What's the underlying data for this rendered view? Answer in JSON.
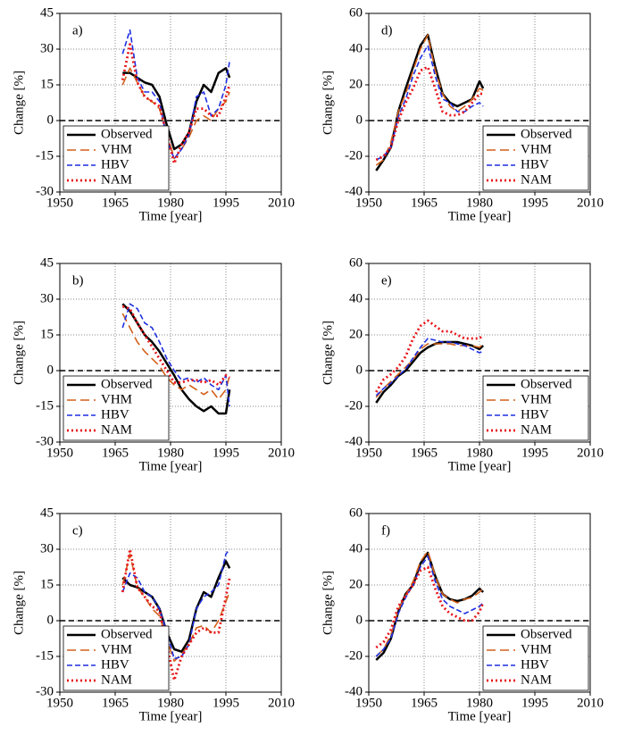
{
  "chart_data": [
    {
      "type": "line",
      "label": "a)",
      "xlabel": "Time [year]",
      "ylabel": "Change [%]",
      "xlim": [
        1950,
        2010
      ],
      "xticks": [
        1950,
        1965,
        1980,
        1995,
        2010
      ],
      "ylim": [
        -30,
        45
      ],
      "yticks": [
        -30,
        -15,
        0,
        15,
        30,
        45
      ],
      "grid": true,
      "reference_line": 0,
      "legend": "lower left",
      "x": [
        1967,
        1969,
        1971,
        1973,
        1975,
        1977,
        1979,
        1981,
        1983,
        1985,
        1987,
        1989,
        1991,
        1993,
        1995,
        1996
      ],
      "series": [
        {
          "name": "Observed",
          "color": "#000000",
          "style": "solid",
          "values": [
            20,
            20,
            18,
            16,
            15,
            10,
            -2,
            -12,
            -10,
            -5,
            8,
            15,
            12,
            20,
            22,
            18
          ]
        },
        {
          "name": "VHM",
          "color": "#d2601a",
          "style": "longdash",
          "values": [
            15,
            22,
            16,
            10,
            8,
            5,
            -5,
            -16,
            -12,
            -7,
            0,
            2,
            0,
            5,
            8,
            12
          ]
        },
        {
          "name": "HBV",
          "color": "#1f2fe0",
          "style": "dashed",
          "values": [
            28,
            38,
            18,
            12,
            12,
            8,
            -8,
            -16,
            -12,
            -6,
            10,
            12,
            2,
            5,
            15,
            25
          ]
        },
        {
          "name": "NAM",
          "color": "#e8161b",
          "style": "dotted",
          "values": [
            17,
            32,
            16,
            10,
            8,
            6,
            -6,
            -18,
            -10,
            -5,
            5,
            5,
            2,
            2,
            10,
            15
          ]
        }
      ]
    },
    {
      "type": "line",
      "label": "b)",
      "xlabel": "Time [year]",
      "ylabel": "Change [%]",
      "xlim": [
        1950,
        2010
      ],
      "xticks": [
        1950,
        1965,
        1980,
        1995,
        2010
      ],
      "ylim": [
        -30,
        45
      ],
      "yticks": [
        -30,
        -15,
        0,
        15,
        30,
        45
      ],
      "grid": true,
      "reference_line": 0,
      "legend": "lower left",
      "x": [
        1967,
        1969,
        1971,
        1973,
        1975,
        1977,
        1979,
        1981,
        1983,
        1985,
        1987,
        1989,
        1991,
        1993,
        1995,
        1996
      ],
      "series": [
        {
          "name": "Observed",
          "color": "#000000",
          "style": "solid",
          "values": [
            28,
            25,
            20,
            15,
            12,
            8,
            3,
            -2,
            -8,
            -12,
            -15,
            -17,
            -15,
            -18,
            -18,
            -8
          ]
        },
        {
          "name": "VHM",
          "color": "#d2601a",
          "style": "longdash",
          "values": [
            24,
            18,
            12,
            8,
            5,
            2,
            -3,
            -6,
            -8,
            -6,
            -8,
            -10,
            -8,
            -12,
            -8,
            -2
          ]
        },
        {
          "name": "HBV",
          "color": "#1f2fe0",
          "style": "dashed",
          "values": [
            18,
            28,
            26,
            20,
            18,
            12,
            5,
            0,
            -4,
            -3,
            -5,
            -3,
            -6,
            -8,
            -2,
            -15
          ]
        },
        {
          "name": "NAM",
          "color": "#e8161b",
          "style": "dotted",
          "values": [
            27,
            26,
            20,
            15,
            10,
            5,
            0,
            -5,
            -5,
            -4,
            -4,
            -5,
            -4,
            -6,
            -2,
            -3
          ]
        }
      ]
    },
    {
      "type": "line",
      "label": "c)",
      "xlabel": "Time [year]",
      "ylabel": "Change [%]",
      "xlim": [
        1950,
        2010
      ],
      "xticks": [
        1950,
        1965,
        1980,
        1995,
        2010
      ],
      "ylim": [
        -30,
        45
      ],
      "yticks": [
        -30,
        -15,
        0,
        15,
        30,
        45
      ],
      "grid": true,
      "reference_line": 0,
      "legend": "lower left",
      "x": [
        1967,
        1969,
        1971,
        1973,
        1975,
        1977,
        1979,
        1981,
        1983,
        1985,
        1987,
        1989,
        1991,
        1993,
        1995,
        1996
      ],
      "series": [
        {
          "name": "Observed",
          "color": "#000000",
          "style": "solid",
          "values": [
            18,
            15,
            14,
            12,
            10,
            5,
            -5,
            -12,
            -13,
            -8,
            5,
            12,
            10,
            18,
            25,
            22
          ]
        },
        {
          "name": "VHM",
          "color": "#d2601a",
          "style": "longdash",
          "values": [
            15,
            28,
            14,
            10,
            5,
            2,
            -8,
            -17,
            -14,
            -10,
            -3,
            -2,
            -5,
            0,
            8,
            12
          ]
        },
        {
          "name": "HBV",
          "color": "#1f2fe0",
          "style": "dashed",
          "values": [
            12,
            20,
            18,
            12,
            10,
            5,
            -5,
            -16,
            -15,
            -10,
            5,
            10,
            12,
            15,
            28,
            30
          ]
        },
        {
          "name": "NAM",
          "color": "#e8161b",
          "style": "dotted",
          "values": [
            12,
            30,
            14,
            10,
            6,
            4,
            -10,
            -25,
            -15,
            -10,
            -5,
            -3,
            -5,
            -5,
            10,
            18
          ]
        }
      ]
    },
    {
      "type": "line",
      "label": "d)",
      "xlabel": "Time [year]",
      "ylabel": "Change [%]",
      "xlim": [
        1950,
        2010
      ],
      "xticks": [
        1950,
        1965,
        1980,
        1995,
        2010
      ],
      "ylim": [
        -40,
        60
      ],
      "yticks": [
        -40,
        -20,
        0,
        20,
        40,
        60
      ],
      "grid": true,
      "reference_line": 0,
      "legend": "lower right",
      "x": [
        1952,
        1954,
        1956,
        1958,
        1960,
        1962,
        1964,
        1966,
        1968,
        1970,
        1972,
        1974,
        1976,
        1978,
        1980,
        1981
      ],
      "series": [
        {
          "name": "Observed",
          "color": "#000000",
          "style": "solid",
          "values": [
            -28,
            -22,
            -15,
            5,
            18,
            30,
            42,
            48,
            30,
            15,
            10,
            8,
            10,
            12,
            22,
            18
          ]
        },
        {
          "name": "VHM",
          "color": "#d2601a",
          "style": "longdash",
          "values": [
            -25,
            -22,
            -12,
            5,
            15,
            28,
            40,
            48,
            28,
            15,
            8,
            5,
            8,
            12,
            18,
            17
          ]
        },
        {
          "name": "HBV",
          "color": "#1f2fe0",
          "style": "dashed",
          "values": [
            -22,
            -20,
            -15,
            2,
            12,
            25,
            35,
            42,
            25,
            12,
            10,
            5,
            5,
            8,
            10,
            8
          ]
        },
        {
          "name": "NAM",
          "color": "#e8161b",
          "style": "dotted",
          "values": [
            -22,
            -20,
            -15,
            0,
            10,
            18,
            28,
            30,
            18,
            5,
            3,
            3,
            5,
            10,
            15,
            15
          ]
        }
      ]
    },
    {
      "type": "line",
      "label": "e)",
      "xlabel": "Time [year]",
      "ylabel": "Change [%]",
      "xlim": [
        1950,
        2010
      ],
      "xticks": [
        1950,
        1965,
        1980,
        1995,
        2010
      ],
      "ylim": [
        -40,
        60
      ],
      "yticks": [
        -40,
        -20,
        0,
        20,
        40,
        60
      ],
      "grid": true,
      "reference_line": 0,
      "legend": "lower right",
      "x": [
        1952,
        1954,
        1956,
        1958,
        1960,
        1962,
        1964,
        1966,
        1968,
        1970,
        1972,
        1974,
        1976,
        1978,
        1980,
        1981
      ],
      "series": [
        {
          "name": "Observed",
          "color": "#000000",
          "style": "solid",
          "values": [
            -18,
            -12,
            -8,
            -3,
            0,
            5,
            10,
            13,
            15,
            16,
            16,
            16,
            15,
            14,
            12,
            14
          ]
        },
        {
          "name": "VHM",
          "color": "#d2601a",
          "style": "longdash",
          "values": [
            -15,
            -10,
            -6,
            -2,
            2,
            6,
            12,
            15,
            15,
            15,
            15,
            14,
            14,
            14,
            13,
            15
          ]
        },
        {
          "name": "HBV",
          "color": "#1f2fe0",
          "style": "dashed",
          "values": [
            -14,
            -10,
            -7,
            -3,
            1,
            7,
            13,
            18,
            17,
            16,
            16,
            15,
            14,
            12,
            10,
            11
          ]
        },
        {
          "name": "NAM",
          "color": "#e8161b",
          "style": "dotted",
          "values": [
            -12,
            -5,
            -2,
            2,
            8,
            18,
            25,
            28,
            25,
            22,
            22,
            20,
            18,
            18,
            18,
            20
          ]
        }
      ]
    },
    {
      "type": "line",
      "label": "f)",
      "xlabel": "Time [year]",
      "ylabel": "Change [%]",
      "xlim": [
        1950,
        2010
      ],
      "xticks": [
        1950,
        1965,
        1980,
        1995,
        2010
      ],
      "ylim": [
        -40,
        60
      ],
      "yticks": [
        -40,
        -20,
        0,
        20,
        40,
        60
      ],
      "grid": true,
      "reference_line": 0,
      "legend": "lower right",
      "x": [
        1952,
        1954,
        1956,
        1958,
        1960,
        1962,
        1964,
        1966,
        1968,
        1970,
        1972,
        1974,
        1976,
        1978,
        1980,
        1981
      ],
      "series": [
        {
          "name": "Observed",
          "color": "#000000",
          "style": "solid",
          "values": [
            -22,
            -18,
            -10,
            5,
            15,
            20,
            32,
            38,
            25,
            15,
            12,
            11,
            12,
            14,
            18,
            16
          ]
        },
        {
          "name": "VHM",
          "color": "#d2601a",
          "style": "longdash",
          "values": [
            -20,
            -16,
            -8,
            6,
            14,
            22,
            33,
            39,
            25,
            15,
            12,
            10,
            12,
            13,
            16,
            18
          ]
        },
        {
          "name": "HBV",
          "color": "#1f2fe0",
          "style": "dashed",
          "values": [
            -20,
            -16,
            -10,
            4,
            13,
            20,
            30,
            36,
            22,
            12,
            8,
            6,
            4,
            6,
            8,
            10
          ]
        },
        {
          "name": "NAM",
          "color": "#e8161b",
          "style": "dotted",
          "values": [
            -15,
            -12,
            -5,
            8,
            14,
            20,
            28,
            30,
            18,
            8,
            4,
            2,
            0,
            0,
            5,
            10
          ]
        }
      ]
    }
  ]
}
